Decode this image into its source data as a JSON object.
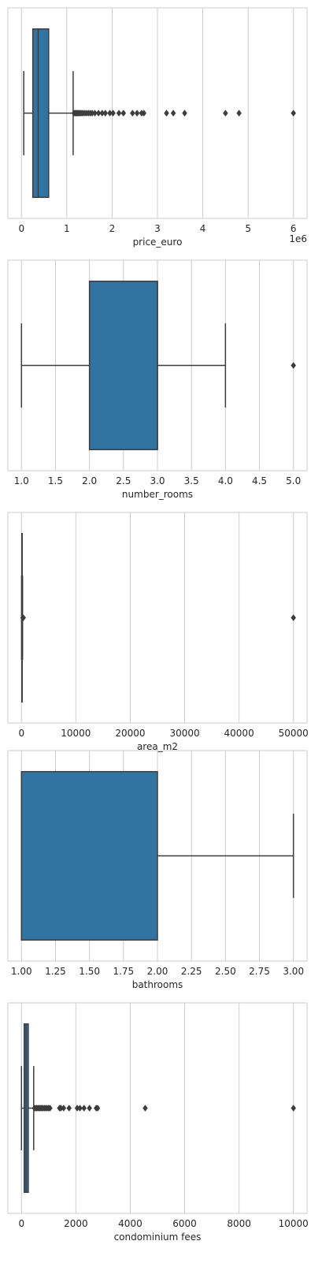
{
  "colors": {
    "box_fill": "#3274a1",
    "line": "#3d3d3d",
    "grid": "#cccccc",
    "frame": "#cccccc",
    "text": "#262626"
  },
  "chart_data": [
    {
      "type": "boxplot",
      "orientation": "horizontal",
      "xlabel": "price_euro",
      "offset_label": "1e6",
      "xlim": [
        -0.3,
        6.3
      ],
      "ticks": [
        0,
        1,
        2,
        3,
        4,
        5,
        6
      ],
      "tick_labels": [
        "0",
        "1",
        "2",
        "3",
        "4",
        "5",
        "6"
      ],
      "grid": true,
      "box": {
        "whisker_low": 0.05,
        "q1": 0.25,
        "median": 0.37,
        "q3": 0.6,
        "whisker_high": 1.14,
        "outliers": [
          1.16,
          1.18,
          1.2,
          1.22,
          1.24,
          1.26,
          1.28,
          1.3,
          1.33,
          1.36,
          1.4,
          1.44,
          1.48,
          1.52,
          1.56,
          1.62,
          1.7,
          1.78,
          1.85,
          1.95,
          2.02,
          2.15,
          2.25,
          2.45,
          2.55,
          2.65,
          2.7,
          3.2,
          3.35,
          3.6,
          4.5,
          4.8,
          6.0
        ]
      }
    },
    {
      "type": "boxplot",
      "orientation": "horizontal",
      "xlabel": "number_rooms",
      "xlim": [
        0.8,
        5.2
      ],
      "ticks": [
        1.0,
        1.5,
        2.0,
        2.5,
        3.0,
        3.5,
        4.0,
        4.5,
        5.0
      ],
      "tick_labels": [
        "1.0",
        "1.5",
        "2.0",
        "2.5",
        "3.0",
        "3.5",
        "4.0",
        "4.5",
        "5.0"
      ],
      "grid": true,
      "box": {
        "whisker_low": 1.0,
        "q1": 2.0,
        "median": 3.0,
        "q3": 3.0,
        "whisker_high": 4.0,
        "outliers": [
          5.0
        ]
      }
    },
    {
      "type": "boxplot",
      "orientation": "horizontal",
      "xlabel": "area_m2",
      "xlim": [
        -2500,
        52500
      ],
      "ticks": [
        0,
        10000,
        20000,
        30000,
        40000,
        50000
      ],
      "tick_labels": [
        "0",
        "10000",
        "20000",
        "30000",
        "40000",
        "50000"
      ],
      "grid": true,
      "box": {
        "whisker_low": 20,
        "q1": 60,
        "median": 85,
        "q3": 120,
        "whisker_high": 200,
        "outliers": [
          250,
          300,
          350,
          50000
        ]
      }
    },
    {
      "type": "boxplot",
      "orientation": "horizontal",
      "xlabel": "bathrooms",
      "xlim": [
        0.9,
        3.1
      ],
      "ticks": [
        1.0,
        1.25,
        1.5,
        1.75,
        2.0,
        2.25,
        2.5,
        2.75,
        3.0
      ],
      "tick_labels": [
        "1.00",
        "1.25",
        "1.50",
        "1.75",
        "2.00",
        "2.25",
        "2.50",
        "2.75",
        "3.00"
      ],
      "grid": true,
      "box": {
        "whisker_low": 1.0,
        "q1": 1.0,
        "median": 1.0,
        "q3": 2.0,
        "whisker_high": 3.0,
        "outliers": []
      }
    },
    {
      "type": "boxplot",
      "orientation": "horizontal",
      "xlabel": "condominium fees",
      "xlim": [
        -500,
        10500
      ],
      "ticks": [
        0,
        2000,
        4000,
        6000,
        8000,
        10000
      ],
      "tick_labels": [
        "0",
        "2000",
        "4000",
        "6000",
        "8000",
        "10000"
      ],
      "grid": true,
      "box": {
        "whisker_low": 0,
        "q1": 100,
        "median": 170,
        "q3": 250,
        "whisker_high": 450,
        "outliers": [
          480,
          520,
          560,
          600,
          640,
          680,
          720,
          760,
          800,
          850,
          900,
          950,
          1000,
          1050,
          1400,
          1450,
          1550,
          1750,
          2050,
          2150,
          2300,
          2500,
          2750,
          2800,
          4550,
          10000
        ]
      }
    }
  ]
}
